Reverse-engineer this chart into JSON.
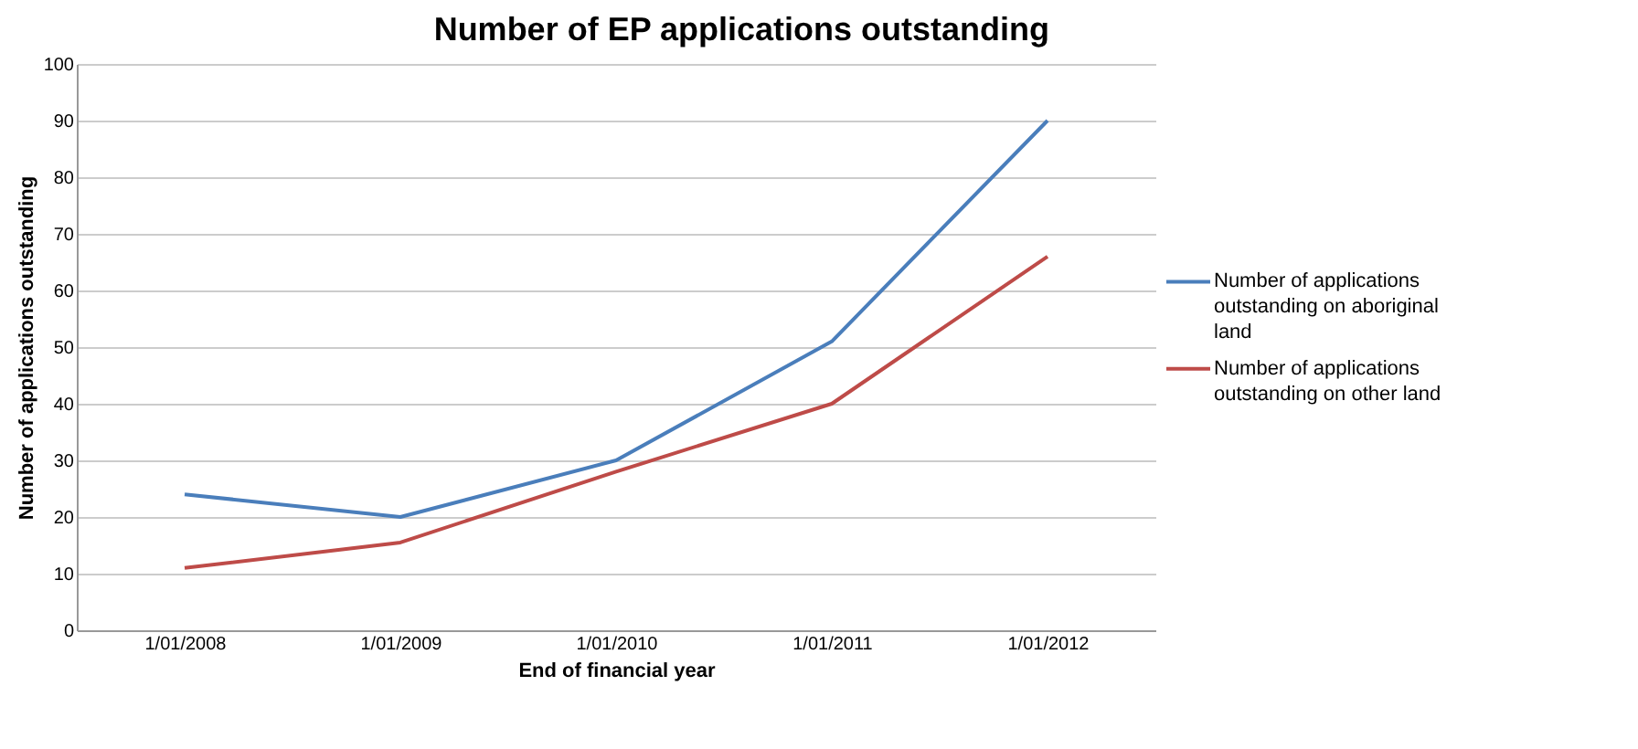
{
  "chart_data": {
    "type": "line",
    "title": "Number of EP applications outstanding",
    "xlabel": "End of financial year",
    "ylabel": "Number of applications outstanding",
    "categories": [
      "1/01/2008",
      "1/01/2009",
      "1/01/2010",
      "1/01/2011",
      "1/01/2012"
    ],
    "series": [
      {
        "name": "Number of applications outstanding on aboriginal land",
        "color": "#4a7ebb",
        "values": [
          24,
          20,
          30,
          51,
          90
        ]
      },
      {
        "name": "Number of applications outstanding on other land",
        "color": "#be4b48",
        "values": [
          11,
          15.5,
          28,
          40,
          66
        ]
      }
    ],
    "ylim": [
      0,
      100
    ],
    "yticks": [
      0,
      10,
      20,
      30,
      40,
      50,
      60,
      70,
      80,
      90,
      100
    ],
    "grid": "y",
    "legend": "right",
    "marker": "none",
    "line_style": "solid"
  }
}
